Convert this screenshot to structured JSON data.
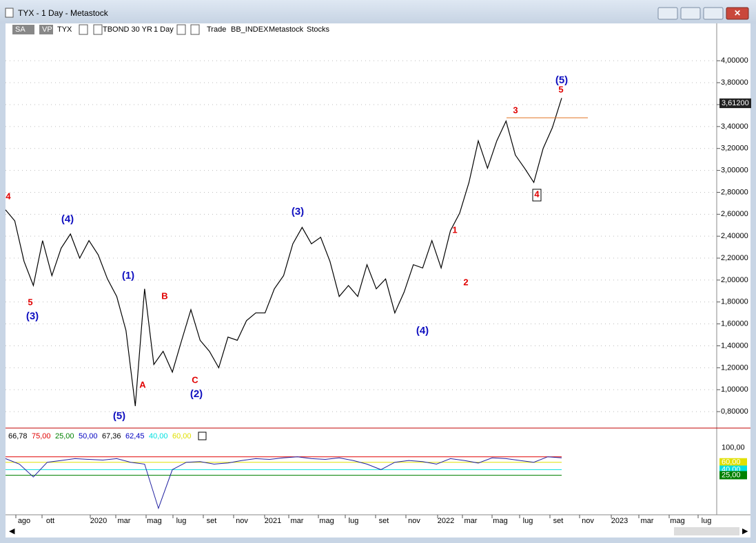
{
  "window": {
    "title": "TYX - 1 Day - Metastock"
  },
  "toolbar": {
    "items": [
      "SA",
      "VP",
      "TYX",
      "TBOND 30 YR",
      "1 Day",
      "Trade",
      "BB_INDEX",
      "Metastock",
      "Stocks"
    ]
  },
  "chart": {
    "ylim": [
      0.65,
      4.19
    ],
    "yticks": [
      {
        "value": 0.8,
        "label": "0,80000"
      },
      {
        "value": 1,
        "label": "1,00000"
      },
      {
        "value": 1.2,
        "label": "1,20000"
      },
      {
        "value": 1.4,
        "label": "1,40000"
      },
      {
        "value": 1.6,
        "label": "1,60000"
      },
      {
        "value": 1.8,
        "label": "1,80000"
      },
      {
        "value": 2,
        "label": "2,00000"
      },
      {
        "value": 2.2,
        "label": "2,20000"
      },
      {
        "value": 2.4,
        "label": "2,40000"
      },
      {
        "value": 2.6,
        "label": "2,60000"
      },
      {
        "value": 2.8,
        "label": "2,80000"
      },
      {
        "value": 3,
        "label": "3,00000"
      },
      {
        "value": 3.2,
        "label": "3,20000"
      },
      {
        "value": 3.4,
        "label": "3,40000"
      },
      {
        "value": 3.6,
        "label": "3,60000"
      },
      {
        "value": 3.8,
        "label": "3,80000"
      },
      {
        "value": 4,
        "label": "4,00000"
      }
    ],
    "last_price": {
      "value": 3.612,
      "label": "3,61200"
    },
    "resistance": 3.48,
    "values": [
      2.64,
      2.54,
      2.17,
      1.95,
      2.36,
      2.04,
      2.29,
      2.42,
      2.2,
      2.36,
      2.23,
      2.01,
      1.85,
      1.54,
      0.85,
      1.92,
      1.23,
      1.35,
      1.16,
      1.45,
      1.73,
      1.45,
      1.35,
      1.2,
      1.48,
      1.45,
      1.63,
      1.7,
      1.7,
      1.92,
      2.04,
      2.33,
      2.48,
      2.33,
      2.39,
      2.17,
      1.85,
      1.95,
      1.85,
      2.14,
      1.92,
      2.01,
      1.7,
      1.89,
      2.14,
      2.11,
      2.36,
      2.11,
      2.45,
      2.61,
      2.89,
      3.27,
      3.02,
      3.27,
      3.45,
      3.14,
      3.02,
      2.89,
      3.2,
      3.39,
      3.66
    ],
    "annotations": [
      {
        "text": "4",
        "color": "#e00000"
      },
      {
        "text": "5",
        "color": "#e00000"
      },
      {
        "text": "(3)",
        "color": "#1010c0"
      },
      {
        "text": "(4)",
        "color": "#1010c0"
      },
      {
        "text": "(1)",
        "color": "#1010c0"
      },
      {
        "text": "B",
        "color": "#e00000"
      },
      {
        "text": "A",
        "color": "#e00000"
      },
      {
        "text": "(5)",
        "color": "#1010c0"
      },
      {
        "text": "C",
        "color": "#e00000"
      },
      {
        "text": "(2)",
        "color": "#1010c0"
      },
      {
        "text": "(3)",
        "color": "#1010c0"
      },
      {
        "text": "(4)",
        "color": "#1010c0"
      },
      {
        "text": "1",
        "color": "#e00000"
      },
      {
        "text": "2",
        "color": "#e00000"
      },
      {
        "text": "3",
        "color": "#e00000"
      },
      {
        "text": "4",
        "color": "#e00000"
      },
      {
        "text": "5",
        "color": "#e00000"
      },
      {
        "text": "(5)",
        "color": "#1010c0"
      }
    ],
    "x_labels": [
      "ago",
      "ott",
      "2020",
      "mar",
      "mag",
      "lug",
      "set",
      "nov",
      "2021",
      "mar",
      "mag",
      "lug",
      "set",
      "nov",
      "2022",
      "mar",
      "mag",
      "lug",
      "set",
      "nov",
      "2023",
      "mar",
      "mag",
      "lug"
    ]
  },
  "indicator": {
    "ylim": [
      -77,
      110
    ],
    "legend": [
      {
        "text": "66,78",
        "color": "#000000"
      },
      {
        "text": "75,00",
        "color": "#e00000"
      },
      {
        "text": "25,00",
        "color": "#008000"
      },
      {
        "text": "50,00",
        "color": "#0000c0"
      },
      {
        "text": "67,36",
        "color": "#000000"
      },
      {
        "text": "62,45",
        "color": "#0000c0"
      },
      {
        "text": "40,00",
        "color": "#00e0e0"
      },
      {
        "text": "60,00",
        "color": "#e0e000"
      }
    ],
    "levels": [
      {
        "value": 75,
        "color": "#e00000"
      },
      {
        "value": 60,
        "color": "#e0e000"
      },
      {
        "value": 40,
        "color": "#00e0e0"
      },
      {
        "value": 25,
        "color": "#008000"
      }
    ],
    "yticks": [
      {
        "value": 100,
        "label": "100,00",
        "bg": "#ffffff"
      },
      {
        "value": 60,
        "label": "60,00",
        "bg": "#e0e000"
      },
      {
        "value": 40,
        "label": "40,00",
        "bg": "#00e0e0"
      },
      {
        "value": 25,
        "label": "25,00",
        "bg": "#008000"
      }
    ],
    "values": [
      70,
      55,
      20,
      60,
      65,
      70,
      68,
      66,
      70,
      60,
      55,
      -65,
      40,
      60,
      62,
      55,
      58,
      65,
      70,
      68,
      72,
      75,
      70,
      68,
      72,
      65,
      55,
      40,
      60,
      65,
      62,
      55,
      70,
      65,
      58,
      72,
      70,
      65,
      60,
      75,
      72
    ]
  }
}
